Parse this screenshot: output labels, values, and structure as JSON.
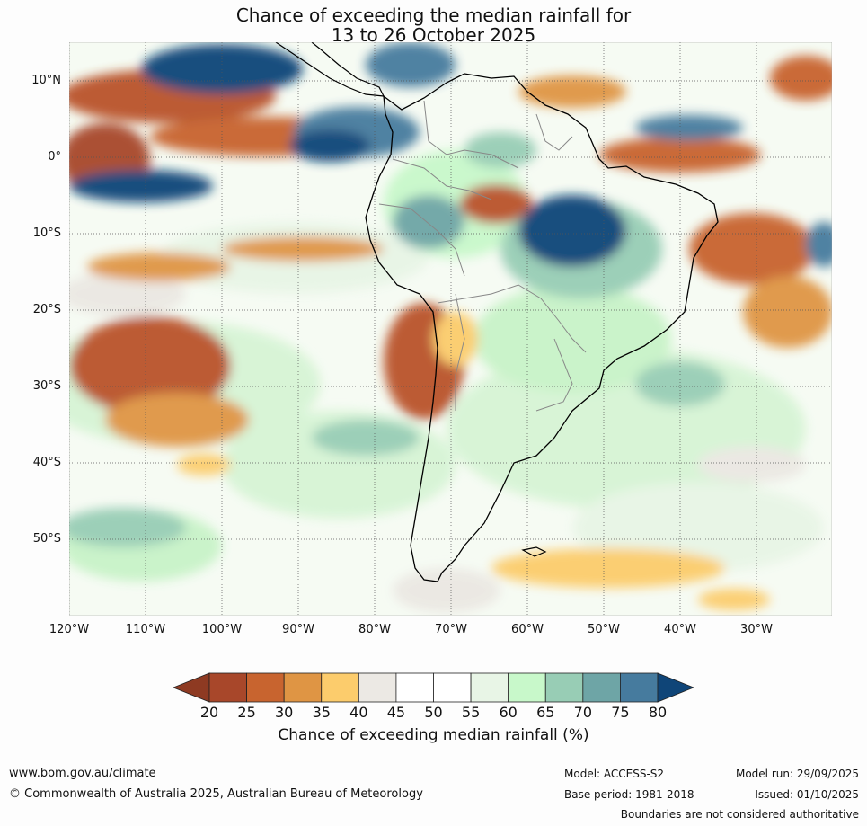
{
  "title": {
    "line1": "Chance of exceeding the median rainfall for",
    "line2": "13 to 26 October 2025"
  },
  "map": {
    "lat_labels": [
      "10°N",
      "0°",
      "10°S",
      "20°S",
      "30°S",
      "40°S",
      "50°S"
    ],
    "lon_labels": [
      "120°W",
      "110°W",
      "100°W",
      "90°W",
      "80°W",
      "70°W",
      "60°W",
      "50°W",
      "40°W",
      "30°W"
    ]
  },
  "colorbar": {
    "ticks": [
      "20",
      "25",
      "30",
      "35",
      "40",
      "45",
      "50",
      "55",
      "60",
      "65",
      "70",
      "75",
      "80"
    ],
    "under_color": "#8e3a22",
    "over_color": "#0f4578",
    "colors": [
      "#a8472a",
      "#c8642f",
      "#df9544",
      "#fccc6c",
      "#ece9e4",
      "#ffffff",
      "#ffffff",
      "#e8f5e6",
      "#c8f8ca",
      "#98cdb5",
      "#6ea5a6",
      "#467b9e"
    ],
    "label": "Chance of exceeding median rainfall (%)"
  },
  "footer": {
    "website": "www.bom.gov.au/climate",
    "copyright": "© Commonwealth of Australia 2025, Australian Bureau of Meteorology",
    "model": "Model: ACCESS-S2",
    "base_period": "Base period: 1981-2018",
    "model_run": "Model run: 29/09/2025",
    "issued": "Issued: 01/10/2025",
    "disclaimer": "Boundaries are not considered authoritative"
  }
}
